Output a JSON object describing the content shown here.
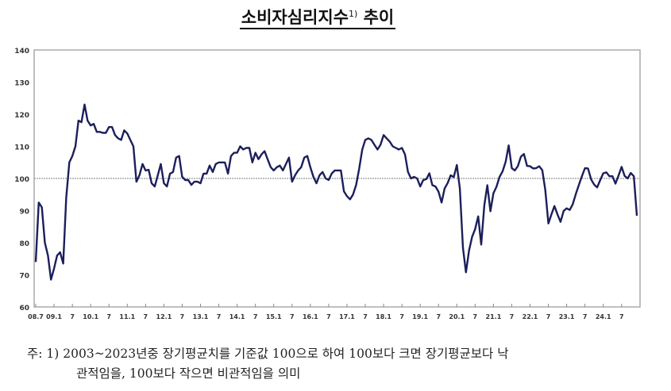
{
  "chart_data": {
    "type": "line",
    "title": "소비자심리지수",
    "title_footnote_mark": "1)",
    "title_suffix": "추이",
    "ylim": [
      60,
      140
    ],
    "yticks": [
      60,
      70,
      80,
      90,
      100,
      110,
      120,
      130,
      140
    ],
    "reference_line": 100,
    "grid": false,
    "line_color": "#1c1f5a",
    "reference_color": "#999999",
    "x_start": "2008.7",
    "x_end": "2024.12",
    "xtick_labels": [
      "08.7",
      "09.1",
      "7",
      "10.1",
      "7",
      "11.1",
      "7",
      "12.1",
      "7",
      "13.1",
      "7",
      "14.1",
      "7",
      "15.1",
      "7",
      "16.1",
      "7",
      "17.1",
      "7",
      "18.1",
      "7",
      "19.1",
      "7",
      "20.1",
      "7",
      "21.1",
      "7",
      "22.1",
      "7",
      "23.1",
      "7",
      "24.1",
      "7"
    ],
    "values": [
      74,
      92.5,
      91,
      80,
      76,
      68.5,
      72,
      76,
      77,
      73.5,
      94,
      105,
      107,
      110,
      118,
      117.5,
      123,
      118,
      116.5,
      117,
      114.5,
      114.5,
      114.2,
      114.2,
      116,
      116,
      113.5,
      112.5,
      112,
      115,
      114,
      112,
      110,
      99,
      101,
      104.5,
      102.5,
      102.7,
      98.5,
      97.5,
      101,
      104.5,
      98.5,
      97.5,
      101.5,
      102,
      106.5,
      107,
      100.5,
      99.5,
      99.5,
      98,
      99,
      99,
      98.5,
      101.5,
      101.5,
      104,
      102,
      104.5,
      105,
      105,
      105,
      101.5,
      107,
      108,
      108,
      110,
      109,
      109.5,
      109.5,
      105,
      108,
      106,
      107.5,
      108.5,
      106,
      103.5,
      102.5,
      103.5,
      104,
      102.5,
      104.5,
      106.5,
      99,
      101,
      102.5,
      103.5,
      106.5,
      107,
      103.5,
      100.5,
      98.5,
      101,
      102,
      100,
      99.5,
      101.5,
      102.5,
      102.5,
      102.5,
      96,
      94.5,
      93.5,
      95,
      98,
      103,
      109,
      112,
      112.5,
      112,
      110.5,
      109,
      110.5,
      113.5,
      112.5,
      111.5,
      110,
      109.5,
      109,
      109.5,
      107.5,
      102,
      100,
      100.5,
      100,
      97.5,
      99.5,
      99.8,
      101.6,
      97.9,
      97.5,
      95.9,
      92.5,
      96.9,
      98.6,
      101,
      100.4,
      104.2,
      96.9,
      78.4,
      70.8,
      77.6,
      81.8,
      84.2,
      88.2,
      79.4,
      91.6,
      97.9,
      89.8,
      95.4,
      97.4,
      100.5,
      102.2,
      105.2,
      110.3,
      103.2,
      102.5,
      103.8,
      106.8,
      107.6,
      103.9,
      103.8,
      103.1,
      103.2,
      103.8,
      102.6,
      96.4,
      86,
      88.8,
      91.4,
      88.8,
      86.5,
      89.9,
      90.7,
      90.2,
      92,
      95.1,
      98,
      100.7,
      103.2,
      103.1,
      99.7,
      98.1,
      97.2,
      99.5,
      101.6,
      101.9,
      100.7,
      100.7,
      98.4,
      100.9,
      103.6,
      100.8,
      100,
      101.7,
      100.7,
      88.4
    ]
  },
  "note": {
    "line1": "주: 1) 2003~2023년중 장기평균치를 기준값 100으로 하여 100보다 크면 장기평균보다 낙",
    "line2": "관적임을, 100보다 작으면 비관적임을 의미"
  }
}
